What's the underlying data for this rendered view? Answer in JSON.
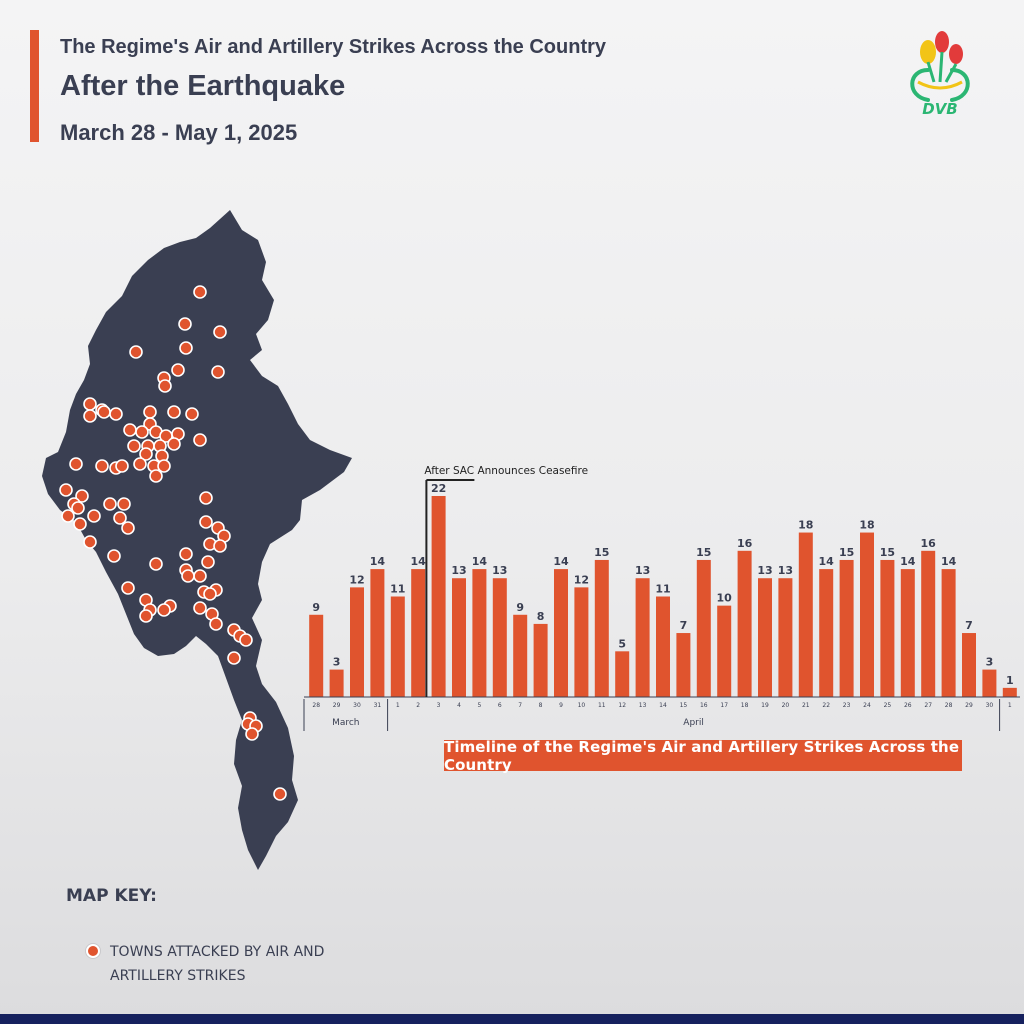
{
  "header": {
    "title_line1": "The Regime's Air and Artillery Strikes Across the Country",
    "title_line2": "After the Earthquake",
    "date_range": "March 28 - May 1, 2025"
  },
  "logo": {
    "text": "DVB",
    "icon": "dvb-logo"
  },
  "colors": {
    "accent": "#e0542e",
    "map_fill": "#3a3f52",
    "text": "#3a3f52",
    "footer": "#16215e"
  },
  "map": {
    "marker_icon": "town-marker",
    "marker_color": "#e0542e",
    "towns_marked": 85
  },
  "chart_data": {
    "type": "bar",
    "categories": [
      "28",
      "29",
      "30",
      "31",
      "1",
      "2",
      "3",
      "4",
      "5",
      "6",
      "7",
      "8",
      "9",
      "10",
      "11",
      "12",
      "13",
      "14",
      "15",
      "16",
      "17",
      "18",
      "19",
      "20",
      "21",
      "22",
      "23",
      "24",
      "25",
      "26",
      "27",
      "28",
      "29",
      "30",
      "1"
    ],
    "values": [
      9,
      3,
      12,
      14,
      11,
      14,
      22,
      13,
      14,
      13,
      9,
      8,
      14,
      12,
      15,
      5,
      13,
      11,
      7,
      15,
      10,
      16,
      13,
      13,
      18,
      14,
      15,
      18,
      15,
      14,
      16,
      14,
      7,
      3,
      1
    ],
    "month_labels": [
      "March",
      "April"
    ],
    "annotation": "After SAC Announces Ceasefire",
    "caption": "Timeline of the Regime's Air and Artillery Strikes Across the Country",
    "bar_color": "#e0542e",
    "grid": false
  },
  "map_key": {
    "title": "MAP KEY:",
    "item_label": "TOWNS ATTACKED BY AIR AND ARTILLERY STRIKES"
  }
}
